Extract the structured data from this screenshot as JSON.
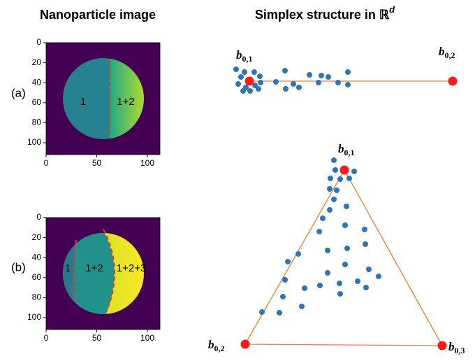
{
  "header": {
    "left_title": "Nanoparticle image",
    "right_title": "Simplex structure in ℝ",
    "right_title_sup": "d"
  },
  "images": [
    {
      "label": "(a)",
      "xticks": [
        0,
        50,
        100
      ],
      "yticks": [
        0,
        20,
        40,
        60,
        80,
        100
      ],
      "regions": [
        "1",
        "1+2"
      ]
    },
    {
      "label": "(b)",
      "xticks": [
        0,
        50,
        100
      ],
      "yticks": [
        0,
        20,
        40,
        60,
        80,
        100
      ],
      "regions": [
        "1",
        "1+2",
        "1+2+3"
      ]
    }
  ],
  "simplices": [
    {
      "vertices": [
        {
          "symbol": "b",
          "sub": "0,1"
        },
        {
          "symbol": "b",
          "sub": "0,2"
        }
      ]
    },
    {
      "vertices": [
        {
          "symbol": "b",
          "sub": "0,1"
        },
        {
          "symbol": "b",
          "sub": "0,2"
        },
        {
          "symbol": "b",
          "sub": "0,3"
        }
      ]
    }
  ]
}
